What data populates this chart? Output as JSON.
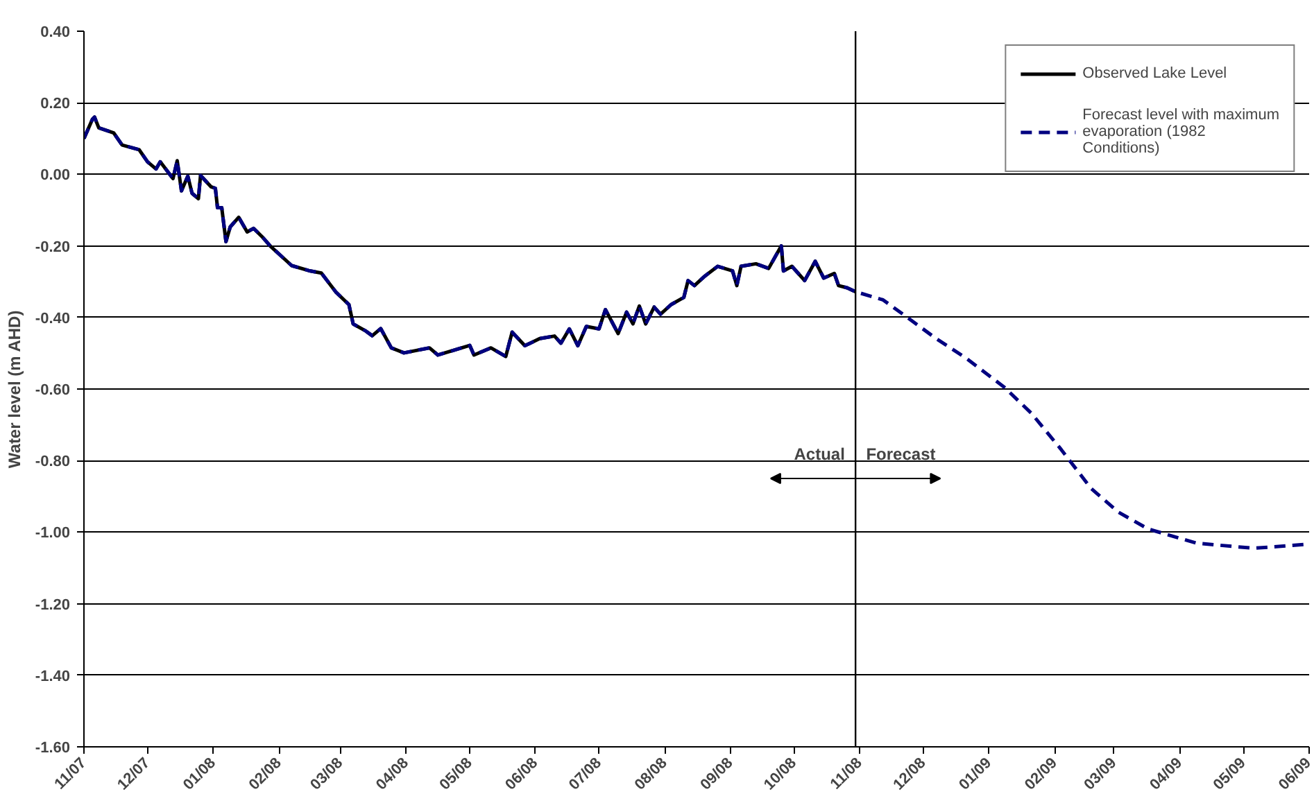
{
  "chart_data": {
    "type": "line",
    "ylabel": "Water level (m AHD)",
    "xlim": [
      "2007-11-01",
      "2009-06-01"
    ],
    "xticks": [
      {
        "value": "2007-11-01",
        "label": "11/07"
      },
      {
        "value": "2007-12-01",
        "label": "12/07"
      },
      {
        "value": "2008-01-01",
        "label": "01/08"
      },
      {
        "value": "2008-02-01",
        "label": "02/08"
      },
      {
        "value": "2008-03-01",
        "label": "03/08"
      },
      {
        "value": "2008-04-01",
        "label": "04/08"
      },
      {
        "value": "2008-05-01",
        "label": "05/08"
      },
      {
        "value": "2008-06-01",
        "label": "06/08"
      },
      {
        "value": "2008-07-01",
        "label": "07/08"
      },
      {
        "value": "2008-08-01",
        "label": "08/08"
      },
      {
        "value": "2008-09-01",
        "label": "09/08"
      },
      {
        "value": "2008-10-01",
        "label": "10/08"
      },
      {
        "value": "2008-11-01",
        "label": "11/08"
      },
      {
        "value": "2008-12-01",
        "label": "12/08"
      },
      {
        "value": "2009-01-01",
        "label": "01/09"
      },
      {
        "value": "2009-02-01",
        "label": "02/09"
      },
      {
        "value": "2009-03-01",
        "label": "03/09"
      },
      {
        "value": "2009-04-01",
        "label": "04/09"
      },
      {
        "value": "2009-05-01",
        "label": "05/09"
      },
      {
        "value": "2009-06-01",
        "label": "06/09"
      }
    ],
    "ylim": [
      -1.6,
      0.4
    ],
    "yticks": [
      {
        "value": -1.6,
        "label": "-1.60"
      },
      {
        "value": -1.4,
        "label": "-1.40"
      },
      {
        "value": -1.2,
        "label": "-1.20"
      },
      {
        "value": -1.0,
        "label": "-1.00"
      },
      {
        "value": -0.8,
        "label": "-0.80"
      },
      {
        "value": -0.6,
        "label": "-0.60"
      },
      {
        "value": -0.4,
        "label": "-0.40"
      },
      {
        "value": -0.2,
        "label": "-0.20"
      },
      {
        "value": 0,
        "label": "0.00"
      },
      {
        "value": 0.2,
        "label": "0.20"
      },
      {
        "value": 0.4,
        "label": "0.40"
      }
    ],
    "grid": "y",
    "legend": "top right",
    "ref_lines": [
      {
        "axis": "x",
        "value": "2008-10-30",
        "color": "#000000"
      }
    ],
    "annotations": [
      "Actual",
      "Forecast"
    ],
    "series": [
      {
        "name": "Observed Lake Level",
        "color": "#000000",
        "line_style": "solid",
        "x": [
          "2007-11-01",
          "2007-11-05",
          "2007-11-06",
          "2007-11-08",
          "2007-11-15",
          "2007-11-19",
          "2007-11-27",
          "2007-12-01",
          "2007-12-05",
          "2007-12-07",
          "2007-12-13",
          "2007-12-15",
          "2007-12-17",
          "2007-12-20",
          "2007-12-22",
          "2007-12-25",
          "2007-12-26",
          "2007-12-31",
          "2008-01-02",
          "2008-01-03",
          "2008-01-05",
          "2008-01-07",
          "2008-01-09",
          "2008-01-13",
          "2008-01-17",
          "2008-01-20",
          "2008-01-24",
          "2008-01-28",
          "2008-02-07",
          "2008-02-15",
          "2008-02-21",
          "2008-02-28",
          "2008-03-05",
          "2008-03-07",
          "2008-03-13",
          "2008-03-16",
          "2008-03-20",
          "2008-03-25",
          "2008-03-31",
          "2008-04-12",
          "2008-04-16",
          "2008-05-01",
          "2008-05-03",
          "2008-05-11",
          "2008-05-18",
          "2008-05-21",
          "2008-05-27",
          "2008-06-03",
          "2008-06-10",
          "2008-06-13",
          "2008-06-17",
          "2008-06-21",
          "2008-06-25",
          "2008-07-01",
          "2008-07-04",
          "2008-07-10",
          "2008-07-14",
          "2008-07-17",
          "2008-07-20",
          "2008-07-23",
          "2008-07-27",
          "2008-07-30",
          "2008-08-04",
          "2008-08-10",
          "2008-08-12",
          "2008-08-15",
          "2008-08-20",
          "2008-08-26",
          "2008-09-02",
          "2008-09-04",
          "2008-09-06",
          "2008-09-13",
          "2008-09-19",
          "2008-09-25",
          "2008-09-26",
          "2008-09-30",
          "2008-10-06",
          "2008-10-11",
          "2008-10-15",
          "2008-10-20",
          "2008-10-22",
          "2008-10-26",
          "2008-10-30"
        ],
        "values": [
          0.1,
          0.154,
          0.16,
          0.13,
          0.116,
          0.082,
          0.069,
          0.035,
          0.015,
          0.035,
          -0.012,
          0.038,
          -0.046,
          -0.005,
          -0.053,
          -0.068,
          -0.003,
          -0.035,
          -0.039,
          -0.093,
          -0.093,
          -0.188,
          -0.147,
          -0.12,
          -0.161,
          -0.151,
          -0.174,
          -0.201,
          -0.255,
          -0.269,
          -0.276,
          -0.33,
          -0.364,
          -0.418,
          -0.438,
          -0.451,
          -0.431,
          -0.485,
          -0.499,
          -0.485,
          -0.505,
          -0.478,
          -0.505,
          -0.485,
          -0.509,
          -0.441,
          -0.479,
          -0.459,
          -0.452,
          -0.472,
          -0.432,
          -0.479,
          -0.425,
          -0.432,
          -0.378,
          -0.445,
          -0.385,
          -0.418,
          -0.368,
          -0.418,
          -0.371,
          -0.391,
          -0.364,
          -0.344,
          -0.297,
          -0.311,
          -0.284,
          -0.257,
          -0.27,
          -0.311,
          -0.257,
          -0.25,
          -0.263,
          -0.2,
          -0.27,
          -0.257,
          -0.297,
          -0.243,
          -0.29,
          -0.277,
          -0.311,
          -0.317,
          -0.328
        ]
      },
      {
        "name": "Forecast level with maximum evaporation (1982 Conditions)",
        "color": "#000080",
        "line_style": "dashed",
        "x": [
          "2007-11-01",
          "2007-11-05",
          "2007-11-06",
          "2007-11-08",
          "2007-11-15",
          "2007-11-19",
          "2007-11-27",
          "2007-12-01",
          "2007-12-05",
          "2007-12-07",
          "2007-12-13",
          "2007-12-15",
          "2007-12-17",
          "2007-12-20",
          "2007-12-22",
          "2007-12-25",
          "2007-12-26",
          "2007-12-31",
          "2008-01-02",
          "2008-01-03",
          "2008-01-05",
          "2008-01-07",
          "2008-01-09",
          "2008-01-13",
          "2008-01-17",
          "2008-01-20",
          "2008-01-24",
          "2008-01-28",
          "2008-02-07",
          "2008-02-15",
          "2008-02-21",
          "2008-02-28",
          "2008-03-05",
          "2008-03-07",
          "2008-03-13",
          "2008-03-16",
          "2008-03-20",
          "2008-03-25",
          "2008-03-31",
          "2008-04-12",
          "2008-04-16",
          "2008-05-01",
          "2008-05-03",
          "2008-05-11",
          "2008-05-18",
          "2008-05-21",
          "2008-05-27",
          "2008-06-03",
          "2008-06-10",
          "2008-06-13",
          "2008-06-17",
          "2008-06-21",
          "2008-06-25",
          "2008-07-01",
          "2008-07-04",
          "2008-07-10",
          "2008-07-14",
          "2008-07-17",
          "2008-07-20",
          "2008-07-23",
          "2008-07-27",
          "2008-07-30",
          "2008-08-04",
          "2008-08-10",
          "2008-08-12",
          "2008-08-15",
          "2008-08-20",
          "2008-08-26",
          "2008-09-02",
          "2008-09-04",
          "2008-09-06",
          "2008-09-13",
          "2008-09-19",
          "2008-09-25",
          "2008-09-26",
          "2008-09-30",
          "2008-10-06",
          "2008-10-11",
          "2008-10-15",
          "2008-10-20",
          "2008-10-22",
          "2008-10-26",
          "2008-10-30",
          "2008-11-12",
          "2008-11-23",
          "2008-12-07",
          "2008-12-21",
          "2009-01-08",
          "2009-01-21",
          "2009-02-04",
          "2009-02-18",
          "2009-03-03",
          "2009-03-17",
          "2009-04-09",
          "2009-05-06",
          "2009-05-31"
        ],
        "values": [
          0.1,
          0.154,
          0.16,
          0.13,
          0.116,
          0.082,
          0.069,
          0.035,
          0.015,
          0.035,
          -0.012,
          0.038,
          -0.046,
          -0.005,
          -0.053,
          -0.068,
          -0.003,
          -0.035,
          -0.039,
          -0.093,
          -0.093,
          -0.188,
          -0.147,
          -0.12,
          -0.161,
          -0.151,
          -0.174,
          -0.201,
          -0.255,
          -0.269,
          -0.276,
          -0.33,
          -0.364,
          -0.418,
          -0.438,
          -0.451,
          -0.431,
          -0.485,
          -0.499,
          -0.485,
          -0.505,
          -0.478,
          -0.505,
          -0.485,
          -0.509,
          -0.441,
          -0.479,
          -0.459,
          -0.452,
          -0.472,
          -0.432,
          -0.479,
          -0.425,
          -0.432,
          -0.378,
          -0.445,
          -0.385,
          -0.418,
          -0.368,
          -0.418,
          -0.371,
          -0.391,
          -0.364,
          -0.344,
          -0.297,
          -0.311,
          -0.284,
          -0.257,
          -0.27,
          -0.311,
          -0.257,
          -0.25,
          -0.263,
          -0.2,
          -0.27,
          -0.257,
          -0.297,
          -0.243,
          -0.29,
          -0.277,
          -0.311,
          -0.317,
          -0.328,
          -0.351,
          -0.398,
          -0.459,
          -0.513,
          -0.594,
          -0.668,
          -0.769,
          -0.877,
          -0.944,
          -0.991,
          -1.031,
          -1.045,
          -1.034
        ]
      }
    ]
  }
}
